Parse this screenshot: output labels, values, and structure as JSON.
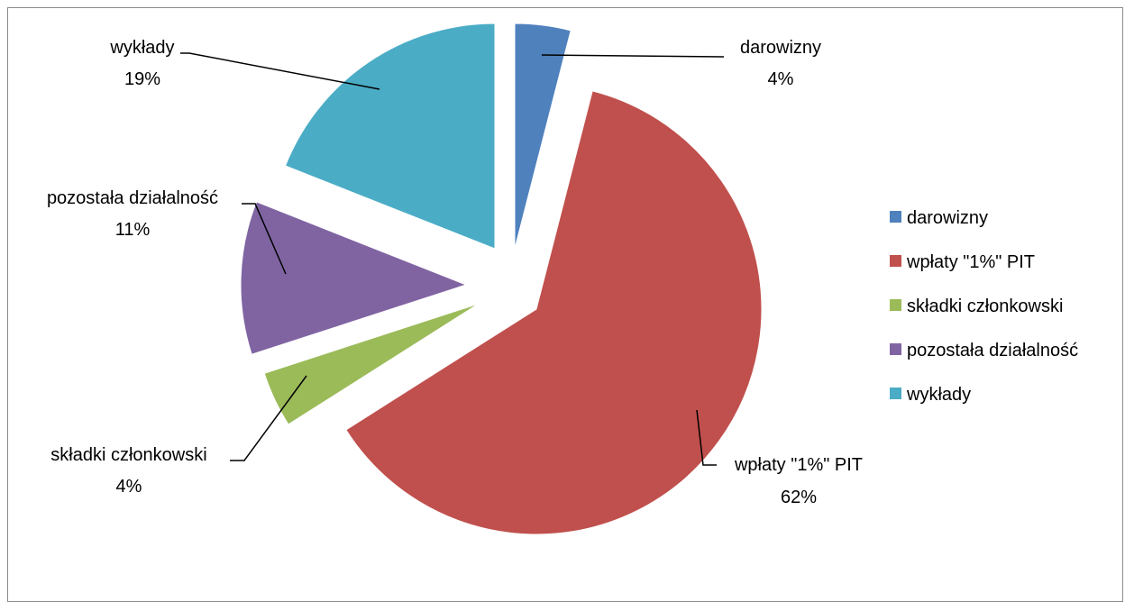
{
  "chart_data": {
    "type": "pie",
    "exploded": true,
    "legend_position": "right",
    "slices": [
      {
        "label": "darowizny",
        "percent": "4%",
        "value": 4,
        "color": "#4F81BD"
      },
      {
        "label": "wpłaty \"1%\" PIT",
        "percent": "62%",
        "value": 62,
        "color": "#C0504D"
      },
      {
        "label": "składki członkowski",
        "percent": "4%",
        "value": 4,
        "color": "#9BBB59"
      },
      {
        "label": "pozostała działalność",
        "percent": "11%",
        "value": 11,
        "color": "#8064A2"
      },
      {
        "label": "wykłady",
        "percent": "19%",
        "value": 19,
        "color": "#4BACC6"
      }
    ]
  }
}
